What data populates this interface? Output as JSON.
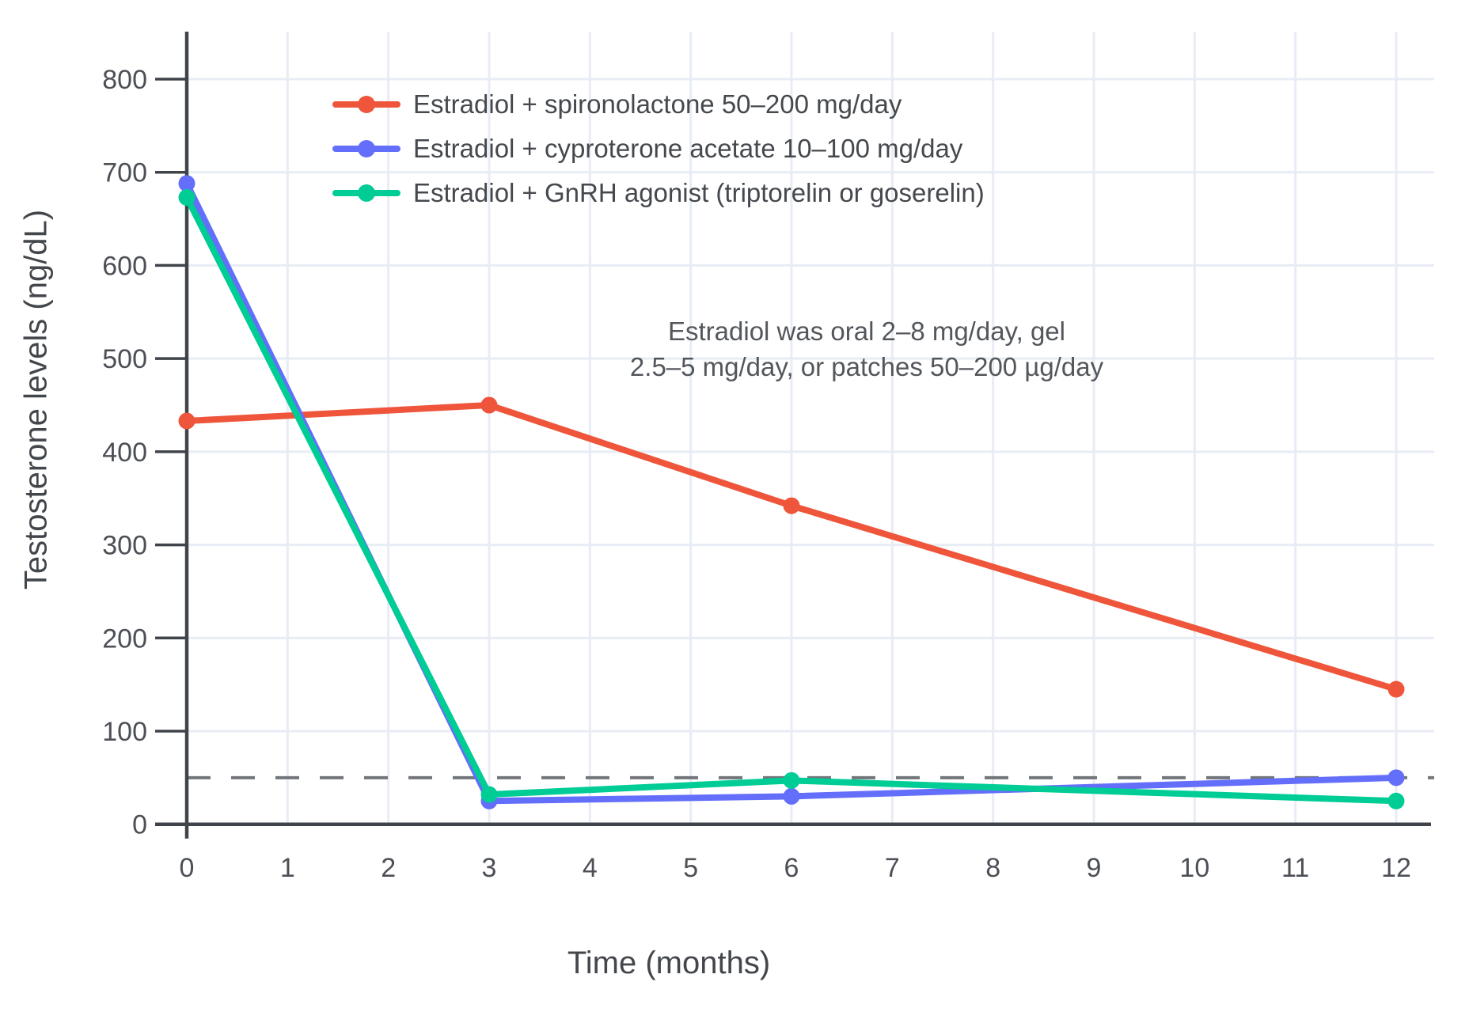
{
  "chart_data": {
    "type": "line",
    "x": [
      0,
      3,
      6,
      12
    ],
    "x_ticks": [
      0,
      1,
      2,
      3,
      4,
      5,
      6,
      7,
      8,
      9,
      10,
      11,
      12
    ],
    "y_ticks": [
      0,
      100,
      200,
      300,
      400,
      500,
      600,
      700,
      800
    ],
    "xlim": [
      0,
      12.4
    ],
    "ylim": [
      0,
      851
    ],
    "grid": true,
    "legend_position": "inside-top-left",
    "xlabel": "Time (months)",
    "ylabel": "Testosterone levels (ng/dL)",
    "series": [
      {
        "name": "Estradiol + spironolactone 50–200 mg/day",
        "color": "#EF553B",
        "values": [
          433,
          450,
          342,
          145
        ]
      },
      {
        "name": "Estradiol + cyproterone acetate 10–100 mg/day",
        "color": "#636EFA",
        "values": [
          688,
          25,
          30,
          50
        ]
      },
      {
        "name": "Estradiol + GnRH agonist (triptorelin or goserelin)",
        "color": "#00CC96",
        "values": [
          673,
          32,
          47,
          25
        ]
      }
    ],
    "reference_line": {
      "value": 50,
      "style": "dashed",
      "color": "#72767b"
    },
    "annotation": {
      "line1": "Estradiol was oral 2–8 mg/day, gel",
      "line2": "2.5–5 mg/day, or patches 50–200 µg/day"
    }
  },
  "colors": {
    "background": "#ffffff",
    "grid": "#e8ecf4",
    "axis": "#3f434a",
    "tick_text": "#4c5056",
    "title_text": "#43474c",
    "annotation_text": "#53575c"
  }
}
